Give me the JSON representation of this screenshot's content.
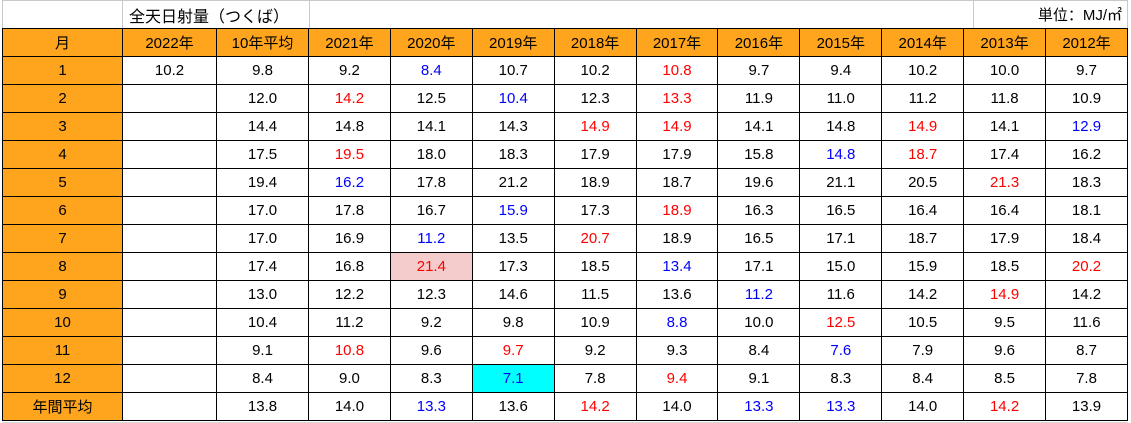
{
  "sheet": {
    "title": "全天日射量（つくば）",
    "unit_label": "単位：MJ/㎡"
  },
  "colors": {
    "header_orange": "#FFA41D",
    "red_text": "#FF0000",
    "blue_text": "#0000FF",
    "pink_bg": "#F4CCCC",
    "cyan_bg": "#00FFFF"
  },
  "table": {
    "month_header": "月",
    "columns": [
      "2022年",
      "10年平均",
      "2021年",
      "2020年",
      "2019年",
      "2018年",
      "2017年",
      "2016年",
      "2015年",
      "2014年",
      "2013年",
      "2012年"
    ],
    "rows": [
      {
        "label": "1",
        "cells": [
          "10.2",
          "9.8",
          "9.2",
          {
            "v": "8.4",
            "c": "blue"
          },
          "10.7",
          "10.2",
          {
            "v": "10.8",
            "c": "red"
          },
          "9.7",
          "9.4",
          "10.2",
          "10.0",
          "9.7"
        ]
      },
      {
        "label": "2",
        "cells": [
          "",
          "12.0",
          {
            "v": "14.2",
            "c": "red"
          },
          "12.5",
          {
            "v": "10.4",
            "c": "blue"
          },
          "12.3",
          {
            "v": "13.3",
            "c": "red"
          },
          "11.9",
          "11.0",
          "11.2",
          "11.8",
          "10.9"
        ]
      },
      {
        "label": "3",
        "cells": [
          "",
          "14.4",
          "14.8",
          "14.1",
          "14.3",
          {
            "v": "14.9",
            "c": "red"
          },
          {
            "v": "14.9",
            "c": "red"
          },
          "14.1",
          "14.8",
          {
            "v": "14.9",
            "c": "red"
          },
          "14.1",
          {
            "v": "12.9",
            "c": "blue"
          }
        ]
      },
      {
        "label": "4",
        "cells": [
          "",
          "17.5",
          {
            "v": "19.5",
            "c": "red"
          },
          "18.0",
          "18.3",
          "17.9",
          "17.9",
          "15.8",
          {
            "v": "14.8",
            "c": "blue"
          },
          {
            "v": "18.7",
            "c": "red"
          },
          "17.4",
          "16.2"
        ]
      },
      {
        "label": "5",
        "cells": [
          "",
          "19.4",
          {
            "v": "16.2",
            "c": "blue"
          },
          "17.8",
          "21.2",
          "18.9",
          "18.7",
          "19.6",
          "21.1",
          "20.5",
          {
            "v": "21.3",
            "c": "red"
          },
          "18.3"
        ]
      },
      {
        "label": "6",
        "cells": [
          "",
          "17.0",
          "17.8",
          "16.7",
          {
            "v": "15.9",
            "c": "blue"
          },
          "17.3",
          {
            "v": "18.9",
            "c": "red"
          },
          "16.3",
          "16.5",
          "16.4",
          "16.4",
          "18.1"
        ]
      },
      {
        "label": "7",
        "cells": [
          "",
          "17.0",
          "16.9",
          {
            "v": "11.2",
            "c": "blue"
          },
          "13.5",
          {
            "v": "20.7",
            "c": "red"
          },
          "18.9",
          "16.5",
          "17.1",
          "18.7",
          "17.9",
          "18.4"
        ]
      },
      {
        "label": "8",
        "cells": [
          "",
          "17.4",
          "16.8",
          {
            "v": "21.4",
            "c": "red",
            "bg": "pink"
          },
          "17.3",
          "18.5",
          {
            "v": "13.4",
            "c": "blue"
          },
          "17.1",
          "15.0",
          "15.9",
          "18.5",
          {
            "v": "20.2",
            "c": "red"
          }
        ]
      },
      {
        "label": "9",
        "cells": [
          "",
          "13.0",
          "12.2",
          "12.3",
          "14.6",
          "11.5",
          "13.6",
          {
            "v": "11.2",
            "c": "blue"
          },
          "11.6",
          "14.2",
          {
            "v": "14.9",
            "c": "red"
          },
          "14.2"
        ]
      },
      {
        "label": "10",
        "cells": [
          "",
          "10.4",
          "11.2",
          "9.2",
          "9.8",
          "10.9",
          {
            "v": "8.8",
            "c": "blue"
          },
          "10.0",
          {
            "v": "12.5",
            "c": "red"
          },
          "10.5",
          "9.5",
          "11.6"
        ]
      },
      {
        "label": "11",
        "cells": [
          "",
          "9.1",
          {
            "v": "10.8",
            "c": "red"
          },
          "9.6",
          {
            "v": "9.7",
            "c": "red"
          },
          "9.2",
          "9.3",
          "8.4",
          {
            "v": "7.6",
            "c": "blue"
          },
          "7.9",
          "9.6",
          "8.7"
        ]
      },
      {
        "label": "12",
        "cells": [
          "",
          "8.4",
          "9.0",
          "8.3",
          {
            "v": "7.1",
            "c": "blue",
            "bg": "cyan"
          },
          "7.8",
          {
            "v": "9.4",
            "c": "red"
          },
          "9.1",
          "8.3",
          "8.4",
          "8.5",
          "7.8"
        ]
      },
      {
        "label": "年間平均",
        "cells": [
          "",
          "13.8",
          "14.0",
          {
            "v": "13.3",
            "c": "blue"
          },
          "13.6",
          {
            "v": "14.2",
            "c": "red"
          },
          "14.0",
          {
            "v": "13.3",
            "c": "blue"
          },
          {
            "v": "13.3",
            "c": "blue"
          },
          "14.0",
          {
            "v": "14.2",
            "c": "red"
          },
          "13.9"
        ]
      }
    ]
  }
}
